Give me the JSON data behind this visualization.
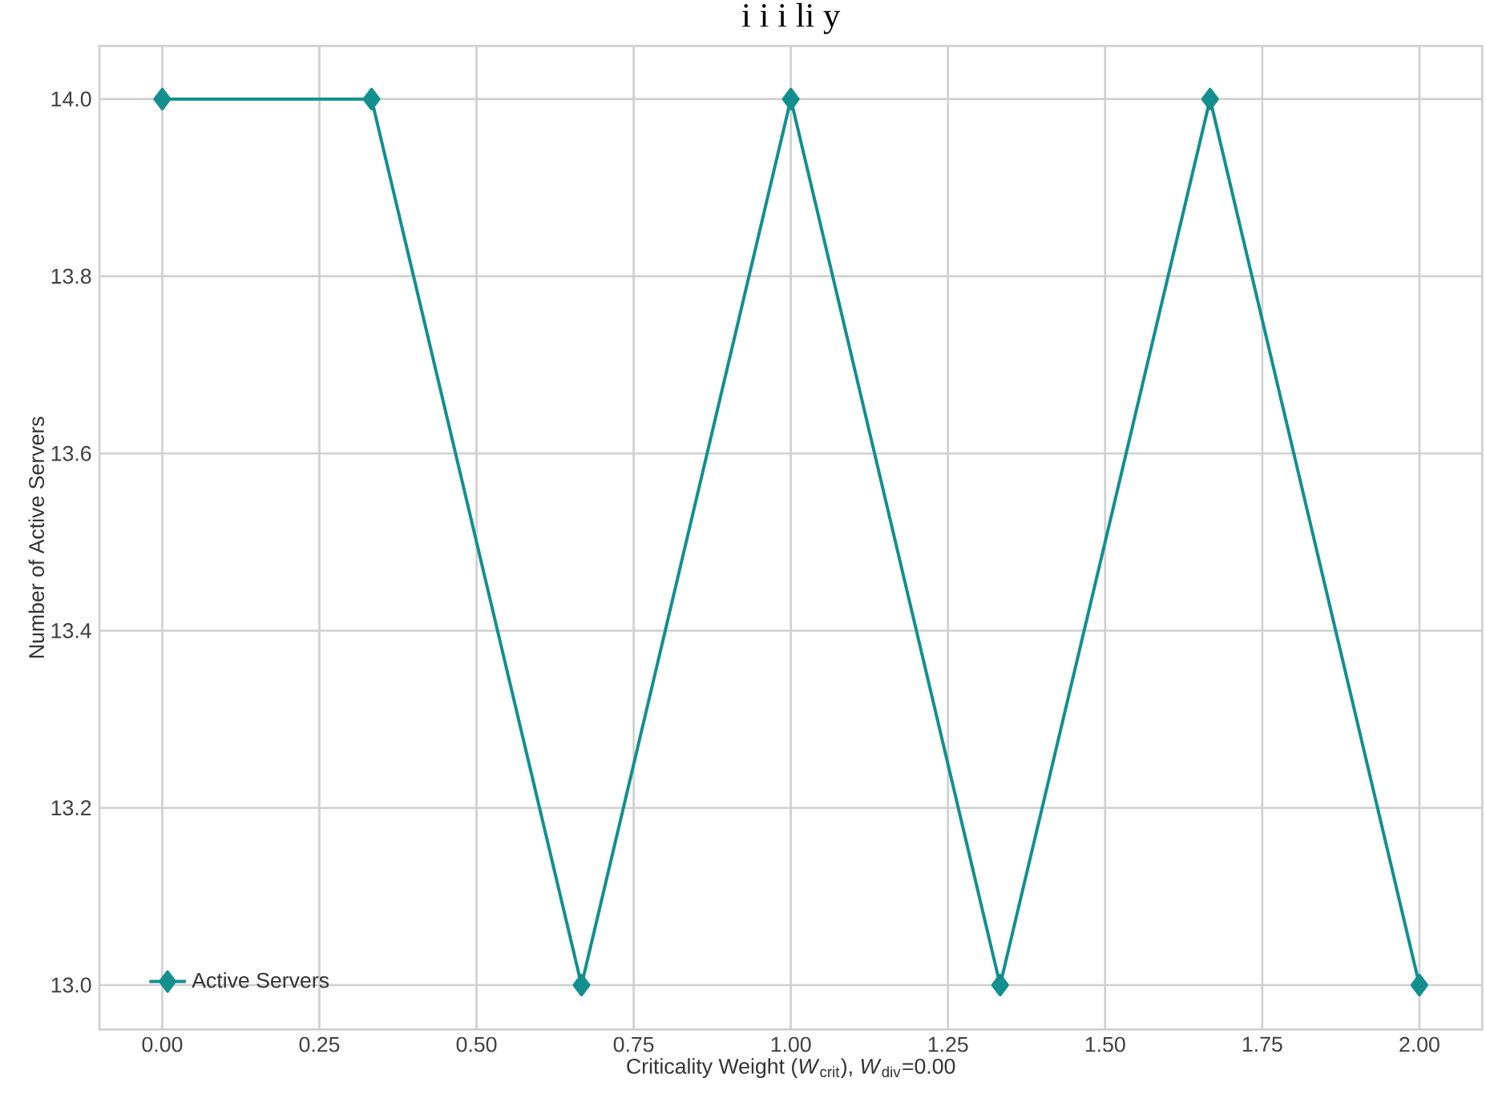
{
  "chart_data": {
    "type": "line",
    "title": "i i i li y",
    "xlabel": "Criticality Weight (*W*$_{crit}$), *W*$_{div}$=0.00",
    "ylabel": "Number of Active Servers",
    "x": [
      0,
      0.333,
      0.667,
      1.0,
      1.333,
      1.667,
      2.0
    ],
    "series": [
      {
        "name": "Active Servers",
        "color": "#138f8f",
        "values": [
          14.0,
          14.0,
          13.0,
          14.0,
          13.0,
          14.0,
          13.0
        ]
      }
    ],
    "xlim": [
      -0.1,
      2.1
    ],
    "ylim": [
      12.95,
      14.06
    ],
    "xticks": [
      {
        "value": 0,
        "label": "0.00"
      },
      0.25,
      {
        "value": 0.5,
        "label": "0.50"
      },
      0.75,
      {
        "value": 1,
        "label": "1.00"
      },
      1.25,
      {
        "value": 1.5,
        "label": "1.50"
      },
      1.75,
      {
        "value": 2,
        "label": "2.00"
      }
    ],
    "yticks": [
      {
        "value": 13,
        "label": "13.0"
      },
      13.2,
      13.4,
      13.6,
      13.8,
      {
        "value": 14,
        "label": "14.0"
      }
    ],
    "grid": true,
    "legend": "bottom left",
    "marker": "diamond",
    "line_style": "solid"
  }
}
